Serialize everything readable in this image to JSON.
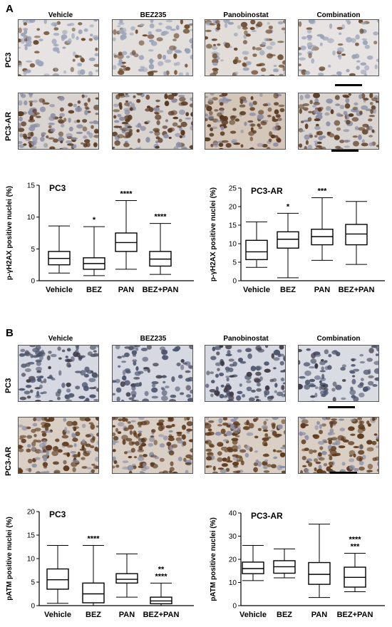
{
  "panel_a": {
    "letter": "A",
    "columns": [
      "Vehicle",
      "BEZ235",
      "Panobinostat",
      "Combination"
    ],
    "rows": [
      "PC3",
      "PC3-AR"
    ]
  },
  "panel_b": {
    "letter": "B",
    "columns": [
      "Vehicle",
      "BEZ235",
      "Panobinostat",
      "Combination"
    ],
    "rows": [
      "PC3",
      "PC3-AR"
    ]
  },
  "colors": {
    "stain_blue": "#9aa3b8",
    "stain_brown": "#6b4a2e",
    "background_tissue": "#d9d4cf"
  },
  "chart_data": [
    {
      "type": "box",
      "title": "PC3",
      "ylabel": "p-γH2AX positive nuclei (%)",
      "ylim": [
        0,
        15
      ],
      "yticks": [
        0,
        5,
        10,
        15
      ],
      "categories": [
        "Vehicle",
        "BEZ",
        "PAN",
        "BEZ+PAN"
      ],
      "boxes": [
        {
          "min": 1.2,
          "q1": 2.5,
          "median": 3.5,
          "q3": 4.6,
          "max": 8.6,
          "sig": ""
        },
        {
          "min": 0.8,
          "q1": 1.8,
          "median": 2.7,
          "q3": 3.6,
          "max": 8.5,
          "sig": "*"
        },
        {
          "min": 1.8,
          "q1": 4.6,
          "median": 6.0,
          "q3": 7.5,
          "max": 12.6,
          "sig": "****"
        },
        {
          "min": 1.0,
          "q1": 2.3,
          "median": 3.4,
          "q3": 4.6,
          "max": 9.0,
          "sig": "****"
        }
      ]
    },
    {
      "type": "box",
      "title": "PC3-AR",
      "ylabel": "p-γH2AX positive nuclei (%)",
      "ylim": [
        0,
        25
      ],
      "yticks": [
        0,
        5,
        10,
        15,
        20,
        25
      ],
      "categories": [
        "Vehicle",
        "BEZ",
        "PAN",
        "BEZ+PAN"
      ],
      "boxes": [
        {
          "min": 3.6,
          "q1": 5.7,
          "median": 7.8,
          "q3": 10.9,
          "max": 15.9,
          "sig": ""
        },
        {
          "min": 0.8,
          "q1": 8.8,
          "median": 11.2,
          "q3": 13.2,
          "max": 18.2,
          "sig": "*"
        },
        {
          "min": 5.5,
          "q1": 9.7,
          "median": 11.9,
          "q3": 13.9,
          "max": 22.4,
          "sig": "***"
        },
        {
          "min": 4.4,
          "q1": 9.7,
          "median": 12.6,
          "q3": 15.2,
          "max": 21.4,
          "sig": ""
        }
      ]
    },
    {
      "type": "box",
      "title": "PC3",
      "ylabel": "pATM positive nuclei (%)",
      "ylim": [
        0,
        20
      ],
      "yticks": [
        0,
        5,
        10,
        15,
        20
      ],
      "categories": [
        "Vehicle",
        "BEZ",
        "PAN",
        "BEZ+PAN"
      ],
      "boxes": [
        {
          "min": 0.5,
          "q1": 3.5,
          "median": 5.5,
          "q3": 7.8,
          "max": 12.8,
          "sig": ""
        },
        {
          "min": 0.0,
          "q1": 0.6,
          "median": 2.5,
          "q3": 4.8,
          "max": 12.8,
          "sig": "****"
        },
        {
          "min": 1.8,
          "q1": 4.8,
          "median": 5.6,
          "q3": 6.8,
          "max": 11.0,
          "sig": ""
        },
        {
          "min": 0.0,
          "q1": 0.4,
          "median": 1.0,
          "q3": 1.8,
          "max": 4.8,
          "sig": "**\n****"
        }
      ]
    },
    {
      "type": "box",
      "title": "PC3-AR",
      "ylabel": "pATM positive nuclei (%)",
      "ylim": [
        0,
        40
      ],
      "yticks": [
        0,
        10,
        20,
        30,
        40
      ],
      "categories": [
        "Vehicle",
        "BEZ",
        "PAN",
        "BEZ+PAN"
      ],
      "boxes": [
        {
          "min": 10.8,
          "q1": 13.8,
          "median": 16.0,
          "q3": 18.8,
          "max": 26.0,
          "sig": ""
        },
        {
          "min": 12.0,
          "q1": 14.0,
          "median": 16.8,
          "q3": 19.4,
          "max": 24.5,
          "sig": ""
        },
        {
          "min": 3.5,
          "q1": 9.2,
          "median": 13.5,
          "q3": 18.6,
          "max": 35.2,
          "sig": ""
        },
        {
          "min": 6.0,
          "q1": 8.0,
          "median": 12.2,
          "q3": 16.6,
          "max": 22.6,
          "sig": "****\n***"
        }
      ]
    }
  ]
}
